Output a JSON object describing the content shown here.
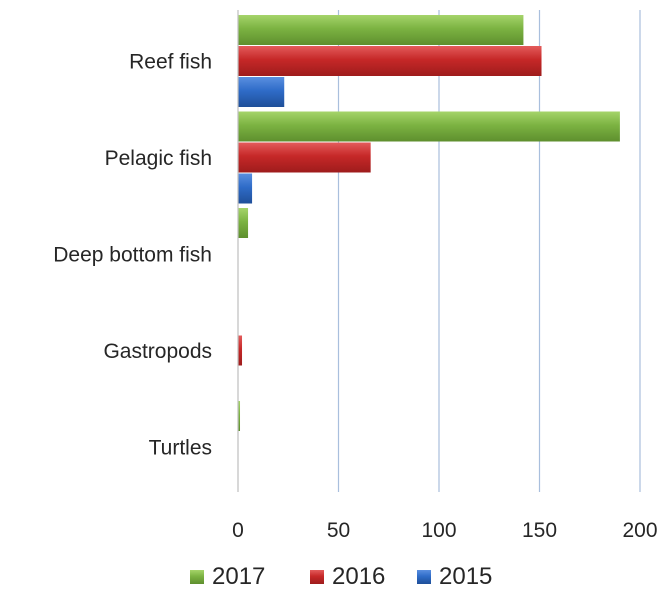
{
  "chart_data": {
    "type": "bar",
    "orientation": "horizontal",
    "title": "",
    "xlabel": "",
    "ylabel": "",
    "categories": [
      "Reef fish",
      "Pelagic fish",
      "Deep bottom fish",
      "Gastropods",
      "Turtles"
    ],
    "series": [
      {
        "name": "2017",
        "color": "#7CB342",
        "values": [
          142,
          190,
          5,
          0,
          1
        ]
      },
      {
        "name": "2016",
        "color": "#C62828",
        "values": [
          151,
          66,
          0,
          2,
          0
        ]
      },
      {
        "name": "2015",
        "color": "#2F6CC8",
        "values": [
          23,
          7,
          0,
          0,
          0
        ]
      }
    ],
    "xlim": [
      0,
      200
    ],
    "ticks": [
      "0",
      "50",
      "100",
      "150",
      "200"
    ],
    "grid": "vertical",
    "legend_position": "bottom"
  }
}
